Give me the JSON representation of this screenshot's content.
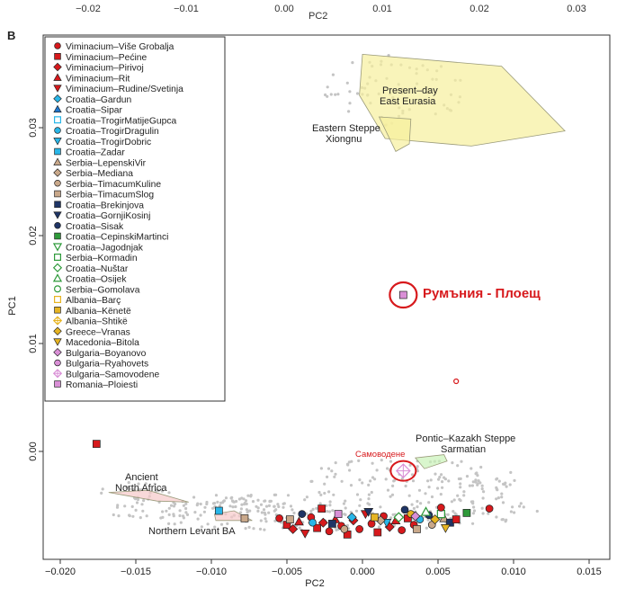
{
  "panel_label": "B",
  "top_axis": {
    "label": "PC2",
    "ticks": [
      "−0.02",
      "−0.01",
      "0.00",
      "0.01",
      "0.02",
      "0.03"
    ]
  },
  "annotations": {
    "romania": "Румъния - Плоещ",
    "samovodene": "Самоводене",
    "present_day": [
      "Present–day",
      "East Eurasia"
    ],
    "eastern_steppe": [
      "Eastern Steppe",
      "Xiongnu"
    ],
    "pontic": [
      "Pontic–Kazakh Steppe",
      "Sarmatian"
    ],
    "ancient_na": [
      "Ancient",
      "North Africa"
    ],
    "northern_levant": "Northern Levant BA"
  },
  "colors": {
    "red": "#d7191c",
    "blue": "#1f78d1",
    "cyan": "#29b6e8",
    "tan": "#c9a88a",
    "navy": "#1f3566",
    "green": "#2e9a3a",
    "gold": "#e6b422",
    "pink": "#d98fd6",
    "highlight": "#d7191c",
    "yellow_poly": "#f7ef9c",
    "green_poly": "#c9f2b8",
    "pink_poly": "#f6c9c9",
    "bg_points": "#bdbdbd"
  },
  "legend": [
    {
      "label": "Viminacium–Više Grobalja",
      "shape": "circle",
      "color": "#d7191c"
    },
    {
      "label": "Viminacium–Pećine",
      "shape": "square",
      "color": "#d7191c"
    },
    {
      "label": "Viminacium–Pirivoj",
      "shape": "diamond",
      "color": "#d7191c"
    },
    {
      "label": "Viminacium–Rit",
      "shape": "triangle-up",
      "color": "#d7191c"
    },
    {
      "label": "Viminacium–Rudine/Svetinja",
      "shape": "triangle-down",
      "color": "#d7191c"
    },
    {
      "label": "Croatia–Gardun",
      "shape": "diamond",
      "color": "#29b6e8"
    },
    {
      "label": "Croatia–Sipar",
      "shape": "triangle-up",
      "color": "#1f78d1"
    },
    {
      "label": "Croatia–TrogirMatijeGupca",
      "shape": "square-open",
      "color": "#29b6e8"
    },
    {
      "label": "Croatia–TrogirDragulin",
      "shape": "circle",
      "color": "#29b6e8"
    },
    {
      "label": "Croatia–TrogirDobric",
      "shape": "triangle-down",
      "color": "#29b6e8"
    },
    {
      "label": "Croatia–Zadar",
      "shape": "square",
      "color": "#29b6e8"
    },
    {
      "label": "Serbia–LepenskiVir",
      "shape": "triangle-up",
      "color": "#c9a88a"
    },
    {
      "label": "Serbia–Mediana",
      "shape": "diamond",
      "color": "#c9a88a"
    },
    {
      "label": "Serbia–TimacumKuline",
      "shape": "circle",
      "color": "#c9a88a"
    },
    {
      "label": "Serbia–TimacumSlog",
      "shape": "square",
      "color": "#c9a88a"
    },
    {
      "label": "Croatia–Brekinjova",
      "shape": "square",
      "color": "#1f3566"
    },
    {
      "label": "Croatia–GornjiKosinj",
      "shape": "triangle-down",
      "color": "#1f3566"
    },
    {
      "label": "Croatia–Sisak",
      "shape": "circle",
      "color": "#1f3566"
    },
    {
      "label": "Croatia–CepinskiMartinci",
      "shape": "square",
      "color": "#2e9a3a"
    },
    {
      "label": "Croatia–Jagodnjak",
      "shape": "triangle-down-open",
      "color": "#2e9a3a"
    },
    {
      "label": "Serbia–Kormadin",
      "shape": "square-open",
      "color": "#2e9a3a"
    },
    {
      "label": "Croatia–Nuštar",
      "shape": "diamond-open",
      "color": "#2e9a3a"
    },
    {
      "label": "Croatia–Osijek",
      "shape": "triangle-up-open",
      "color": "#2e9a3a"
    },
    {
      "label": "Serbia–Gomolava",
      "shape": "circle-open",
      "color": "#2e9a3a"
    },
    {
      "label": "Albania–Barç",
      "shape": "square-open",
      "color": "#e6b422"
    },
    {
      "label": "Albania–Kënetë",
      "shape": "square",
      "color": "#e6b422"
    },
    {
      "label": "Albania–Shtikë",
      "shape": "diamond-cross",
      "color": "#e6b422"
    },
    {
      "label": "Greece–Vranas",
      "shape": "diamond",
      "color": "#e6b422"
    },
    {
      "label": "Macedonia–Bitola",
      "shape": "triangle-down",
      "color": "#e6b422"
    },
    {
      "label": "Bulgaria–Boyanovo",
      "shape": "diamond",
      "color": "#d98fd6"
    },
    {
      "label": "Bulgaria–Ryahovets",
      "shape": "circle",
      "color": "#d98fd6"
    },
    {
      "label": "Bulgaria–Samovodene",
      "shape": "diamond-cross",
      "color": "#d98fd6"
    },
    {
      "label": "Romania–Ploiesti",
      "shape": "square",
      "color": "#d98fd6"
    }
  ],
  "chart_data": {
    "type": "scatter",
    "xlabel": "PC2",
    "ylabel": "PC1",
    "xlim": [
      -0.021,
      0.016
    ],
    "ylim": [
      -0.011,
      0.04
    ],
    "x_ticks": [
      -0.02,
      -0.015,
      -0.01,
      -0.005,
      0,
      0.005,
      0.01,
      0.015
    ],
    "x_tick_labels": [
      "−0.020",
      "−0.015",
      "−0.010",
      "−0.005",
      "0.000",
      "0.005",
      "0.010",
      "0.015"
    ],
    "y_ticks": [
      0,
      0.01,
      0.02,
      0.03
    ],
    "y_tick_labels": [
      "0.00",
      "0.01",
      "0.02",
      "0.03"
    ],
    "grid": false,
    "legend_position": "top-left",
    "highlighted_points": [
      {
        "label": "Romania–Ploiesti",
        "x": 0.0027,
        "y": 0.0145,
        "shape": "square",
        "color": "#d98fd6"
      },
      {
        "label": "Bulgaria–Samovodene",
        "x": 0.0027,
        "y": -0.0018,
        "shape": "diamond-cross",
        "color": "#d98fd6"
      }
    ],
    "outlier_points": [
      {
        "x": 0.0062,
        "y": 0.0065,
        "shape": "circle-open",
        "color": "#d7191c"
      },
      {
        "x": -0.0176,
        "y": 0.0007,
        "shape": "square",
        "color": "#d7191c"
      }
    ],
    "polygons": [
      {
        "name": "Present-day East Eurasia",
        "color": "#f7ef9c",
        "points": [
          [
            0.0,
            0.0368
          ],
          [
            0.0092,
            0.0357
          ],
          [
            0.0134,
            0.0297
          ],
          [
            0.0072,
            0.0283
          ],
          [
            0.0015,
            0.029
          ],
          [
            -0.0002,
            0.033
          ]
        ]
      },
      {
        "name": "Eastern Steppe Xiongnu",
        "color": "#f7ef9c",
        "points": [
          [
            0.0011,
            0.031
          ],
          [
            0.0032,
            0.0308
          ],
          [
            0.0031,
            0.0285
          ],
          [
            0.0022,
            0.0278
          ]
        ]
      },
      {
        "name": "Pontic-Kazakh Steppe Sarmatian",
        "color": "#c9f2b8",
        "points": [
          [
            0.0035,
            -0.0006
          ],
          [
            0.0054,
            -0.0003
          ],
          [
            0.0056,
            -0.0009
          ],
          [
            0.0041,
            -0.0016
          ]
        ]
      },
      {
        "name": "Ancient North Africa",
        "color": "#f6c9c9",
        "points": [
          [
            -0.0168,
            -0.0038
          ],
          [
            -0.0142,
            -0.0036
          ],
          [
            -0.0115,
            -0.0047
          ],
          [
            -0.0136,
            -0.0046
          ]
        ]
      },
      {
        "name": "Northern Levant BA",
        "color": "#f6c9c9",
        "points": [
          [
            -0.0098,
            -0.0058
          ],
          [
            -0.0085,
            -0.0055
          ],
          [
            -0.0073,
            -0.0064
          ],
          [
            -0.0097,
            -0.0064
          ]
        ]
      }
    ],
    "focal_points": [
      {
        "x": -0.0055,
        "y": -0.0062,
        "shape": "circle",
        "color": "#d7191c"
      },
      {
        "x": -0.005,
        "y": -0.0068,
        "shape": "square",
        "color": "#d7191c"
      },
      {
        "x": -0.0046,
        "y": -0.0072,
        "shape": "diamond",
        "color": "#d7191c"
      },
      {
        "x": -0.0042,
        "y": -0.0065,
        "shape": "triangle-up",
        "color": "#d7191c"
      },
      {
        "x": -0.0038,
        "y": -0.0076,
        "shape": "triangle-down",
        "color": "#d7191c"
      },
      {
        "x": -0.0034,
        "y": -0.0061,
        "shape": "circle",
        "color": "#d7191c"
      },
      {
        "x": -0.003,
        "y": -0.0071,
        "shape": "square",
        "color": "#d7191c"
      },
      {
        "x": -0.0026,
        "y": -0.0066,
        "shape": "diamond",
        "color": "#d7191c"
      },
      {
        "x": -0.0022,
        "y": -0.0074,
        "shape": "circle",
        "color": "#d7191c"
      },
      {
        "x": -0.0018,
        "y": -0.0063,
        "shape": "triangle-up",
        "color": "#d7191c"
      },
      {
        "x": -0.0014,
        "y": -0.0069,
        "shape": "circle",
        "color": "#d7191c"
      },
      {
        "x": -0.001,
        "y": -0.0077,
        "shape": "square",
        "color": "#d7191c"
      },
      {
        "x": -0.0006,
        "y": -0.0064,
        "shape": "diamond",
        "color": "#d7191c"
      },
      {
        "x": -0.0002,
        "y": -0.0072,
        "shape": "circle",
        "color": "#d7191c"
      },
      {
        "x": 0.0002,
        "y": -0.0058,
        "shape": "triangle-down",
        "color": "#d7191c"
      },
      {
        "x": 0.0006,
        "y": -0.0067,
        "shape": "circle",
        "color": "#d7191c"
      },
      {
        "x": 0.001,
        "y": -0.0075,
        "shape": "square",
        "color": "#d7191c"
      },
      {
        "x": 0.0014,
        "y": -0.006,
        "shape": "circle",
        "color": "#d7191c"
      },
      {
        "x": 0.0018,
        "y": -0.007,
        "shape": "diamond",
        "color": "#d7191c"
      },
      {
        "x": 0.0022,
        "y": -0.0064,
        "shape": "triangle-up",
        "color": "#d7191c"
      },
      {
        "x": 0.0026,
        "y": -0.0073,
        "shape": "circle",
        "color": "#d7191c"
      },
      {
        "x": 0.003,
        "y": -0.0062,
        "shape": "square",
        "color": "#d7191c"
      },
      {
        "x": 0.0034,
        "y": -0.0068,
        "shape": "circle",
        "color": "#d7191c"
      },
      {
        "x": -0.0095,
        "y": -0.0055,
        "shape": "square",
        "color": "#29b6e8"
      },
      {
        "x": -0.0033,
        "y": -0.0066,
        "shape": "circle",
        "color": "#29b6e8"
      },
      {
        "x": -0.0007,
        "y": -0.0061,
        "shape": "diamond",
        "color": "#29b6e8"
      },
      {
        "x": 0.0016,
        "y": -0.0066,
        "shape": "triangle-down",
        "color": "#29b6e8"
      },
      {
        "x": 0.0038,
        "y": -0.0063,
        "shape": "circle",
        "color": "#29b6e8"
      },
      {
        "x": -0.0048,
        "y": -0.0063,
        "shape": "square",
        "color": "#c9a88a"
      },
      {
        "x": -0.0078,
        "y": -0.0062,
        "shape": "square",
        "color": "#c9a88a"
      },
      {
        "x": -0.0012,
        "y": -0.0072,
        "shape": "circle",
        "color": "#c9a88a"
      },
      {
        "x": 0.0012,
        "y": -0.0064,
        "shape": "diamond",
        "color": "#c9a88a"
      },
      {
        "x": 0.0036,
        "y": -0.0072,
        "shape": "square",
        "color": "#c9a88a"
      },
      {
        "x": 0.0046,
        "y": -0.0068,
        "shape": "circle",
        "color": "#c9a88a"
      },
      {
        "x": 0.0054,
        "y": -0.0062,
        "shape": "triangle-up",
        "color": "#c9a88a"
      },
      {
        "x": -0.004,
        "y": -0.0058,
        "shape": "circle",
        "color": "#1f3566"
      },
      {
        "x": -0.002,
        "y": -0.0067,
        "shape": "square",
        "color": "#1f3566"
      },
      {
        "x": 0.0004,
        "y": -0.0056,
        "shape": "triangle-down",
        "color": "#1f3566"
      },
      {
        "x": 0.0028,
        "y": -0.0054,
        "shape": "circle",
        "color": "#1f3566"
      },
      {
        "x": 0.0044,
        "y": -0.0059,
        "shape": "circle",
        "color": "#1f3566"
      },
      {
        "x": 0.0058,
        "y": -0.0066,
        "shape": "square",
        "color": "#1f3566"
      },
      {
        "x": 0.0069,
        "y": -0.0057,
        "shape": "square",
        "color": "#2e9a3a"
      },
      {
        "x": 0.0052,
        "y": -0.0058,
        "shape": "square-open",
        "color": "#2e9a3a"
      },
      {
        "x": 0.0024,
        "y": -0.0061,
        "shape": "diamond-open",
        "color": "#2e9a3a"
      },
      {
        "x": 0.0042,
        "y": -0.0056,
        "shape": "triangle-up-open",
        "color": "#2e9a3a"
      },
      {
        "x": 0.0032,
        "y": -0.0058,
        "shape": "circle",
        "color": "#e6b422"
      },
      {
        "x": 0.0048,
        "y": -0.0063,
        "shape": "diamond",
        "color": "#e6b422"
      },
      {
        "x": 0.0008,
        "y": -0.0061,
        "shape": "square",
        "color": "#e6b422"
      },
      {
        "x": 0.0055,
        "y": -0.0071,
        "shape": "triangle-down",
        "color": "#e6b422"
      },
      {
        "x": -0.0016,
        "y": -0.0058,
        "shape": "square",
        "color": "#d98fd6"
      },
      {
        "x": 0.0035,
        "y": -0.006,
        "shape": "diamond",
        "color": "#d98fd6"
      },
      {
        "x": -0.0027,
        "y": -0.0053,
        "shape": "square",
        "color": "#d7191c"
      },
      {
        "x": 0.0052,
        "y": -0.0052,
        "shape": "circle",
        "color": "#d7191c"
      },
      {
        "x": 0.0084,
        "y": -0.0053,
        "shape": "circle",
        "color": "#d7191c"
      },
      {
        "x": 0.0062,
        "y": -0.0063,
        "shape": "square",
        "color": "#d7191c"
      }
    ]
  }
}
